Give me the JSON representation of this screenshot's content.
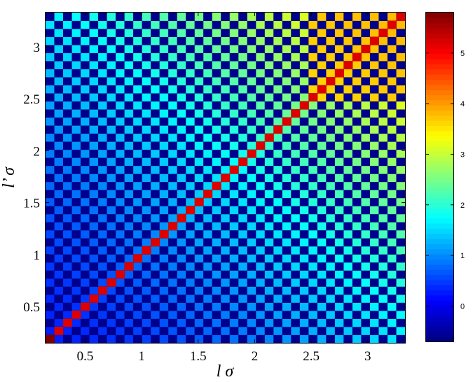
{
  "chart_data": [
    {
      "type": "heatmap",
      "title": "",
      "xlabel": "l σ",
      "ylabel": "l’ σ",
      "x_range": [
        0.15,
        3.33
      ],
      "y_range": [
        0.15,
        3.33
      ],
      "n_cells": 41,
      "x_ticks": [
        {
          "value": 0.5,
          "label": "0.5"
        },
        {
          "value": 1,
          "label": "1"
        },
        {
          "value": 1.5,
          "label": "1.5"
        },
        {
          "value": 2,
          "label": "2"
        },
        {
          "value": 2.5,
          "label": "2.5"
        },
        {
          "value": 3,
          "label": "3"
        }
      ],
      "y_ticks": [
        {
          "value": 0.5,
          "label": "0.5"
        },
        {
          "value": 1,
          "label": "1"
        },
        {
          "value": 1.5,
          "label": "1.5"
        },
        {
          "value": 2,
          "label": "2"
        },
        {
          "value": 2.5,
          "label": "2.5"
        },
        {
          "value": 3,
          "label": "3"
        }
      ],
      "pattern": {
        "diagonal_value": 5.2,
        "corner_value": 5.8,
        "checkerboard_low": -0.6,
        "checkerboard_high_near_origin": 0.3,
        "checkerboard_high_far_corner": 3.8,
        "upper_right_block_min": 3.0
      },
      "colormap": "jet",
      "value_range": [
        -0.7,
        5.8
      ],
      "grid": false
    },
    {
      "type": "colorbar",
      "range": [
        -0.7,
        5.8
      ],
      "ticks": [
        {
          "value": 0,
          "label": "0"
        },
        {
          "value": 1,
          "label": "1"
        },
        {
          "value": 2,
          "label": "2"
        },
        {
          "value": 3,
          "label": "3"
        },
        {
          "value": 4,
          "label": "4"
        },
        {
          "value": 5,
          "label": "5"
        }
      ]
    }
  ]
}
